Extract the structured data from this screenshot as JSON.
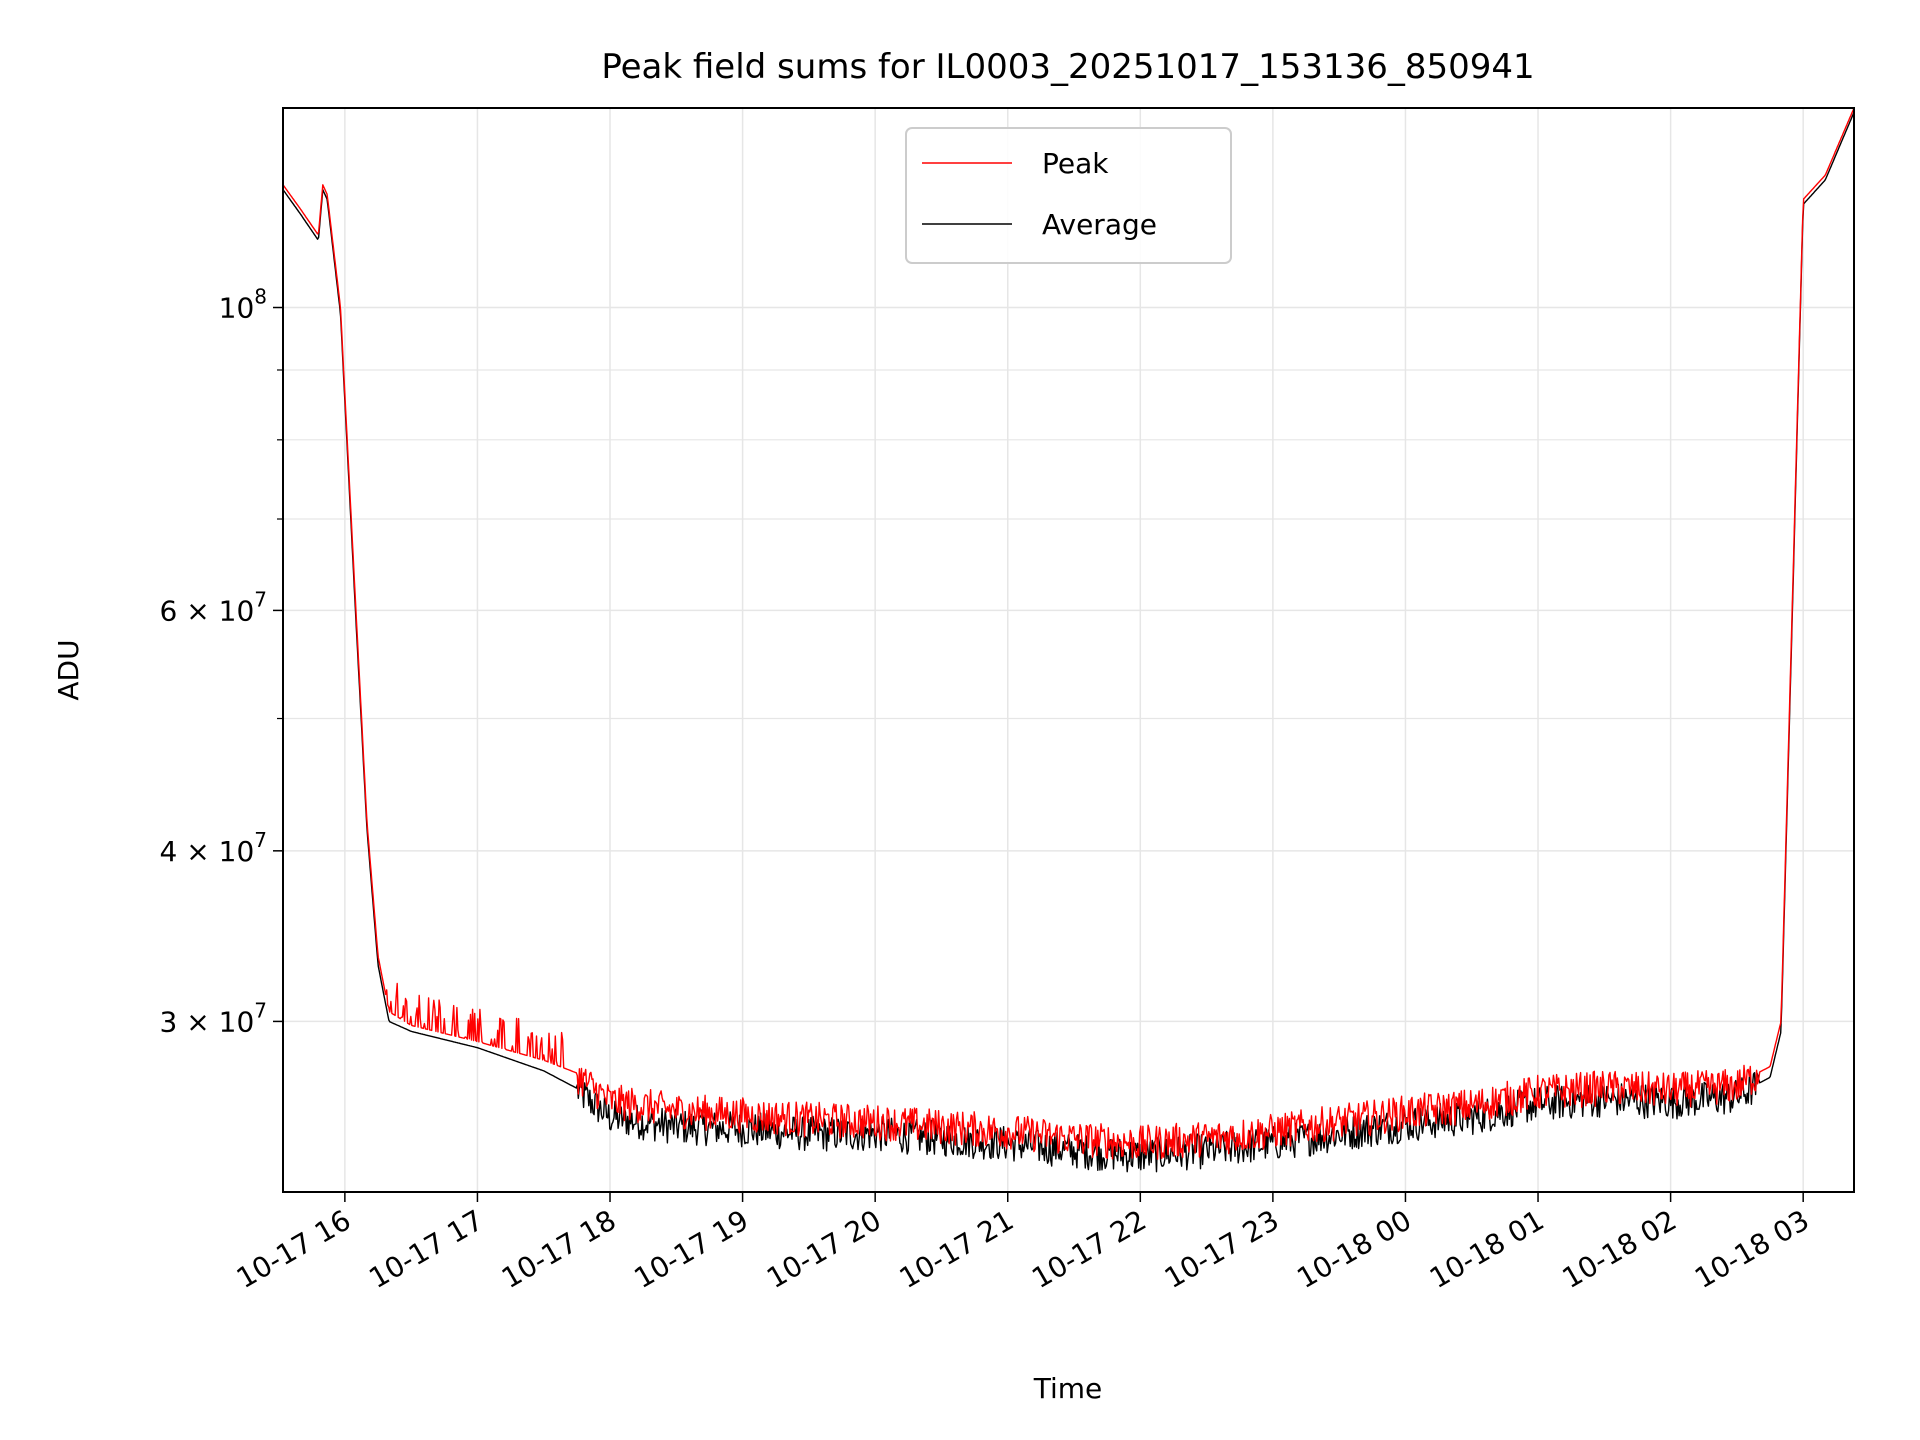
{
  "chart_data": {
    "type": "line",
    "title": "Peak field sums for IL0003_20251017_153136_850941",
    "xlabel": "Time",
    "ylabel": "ADU",
    "yscale": "log",
    "grid": true,
    "legend_placement": "upper center",
    "xlim": [
      "2025-10-17 15:32",
      "2025-10-18 03:23"
    ],
    "ylim": [
      22500000,
      140000000
    ],
    "x_ticks": [
      "10-17 16",
      "10-17 17",
      "10-17 18",
      "10-17 19",
      "10-17 20",
      "10-17 21",
      "10-17 22",
      "10-17 23",
      "10-18 00",
      "10-18 01",
      "10-18 02",
      "10-18 03"
    ],
    "y_ticks": [
      {
        "value": 100000000,
        "base": "10",
        "exp": "8"
      },
      {
        "value": 60000000,
        "base": "6 × 10",
        "exp": "7"
      },
      {
        "value": 40000000,
        "base": "4 × 10",
        "exp": "7"
      },
      {
        "value": 30000000,
        "base": "3 × 10",
        "exp": "7"
      }
    ],
    "series": [
      {
        "name": "Peak",
        "color": "#ff0000",
        "x": [
          "2025-10-17 15:32",
          "2025-10-17 15:40",
          "2025-10-17 15:48",
          "2025-10-17 15:50",
          "2025-10-17 15:52",
          "2025-10-17 15:58",
          "2025-10-17 16:05",
          "2025-10-17 16:10",
          "2025-10-17 16:15",
          "2025-10-17 16:20",
          "2025-10-17 16:30",
          "2025-10-17 17:00",
          "2025-10-17 17:30",
          "2025-10-17 17:45",
          "2025-10-17 18:00",
          "2025-10-17 18:30",
          "2025-10-17 19:00",
          "2025-10-17 19:30",
          "2025-10-17 20:00",
          "2025-10-17 20:30",
          "2025-10-17 21:00",
          "2025-10-17 21:30",
          "2025-10-17 22:00",
          "2025-10-17 22:30",
          "2025-10-17 23:00",
          "2025-10-17 23:30",
          "2025-10-18 00:00",
          "2025-10-18 00:30",
          "2025-10-18 01:00",
          "2025-10-18 01:30",
          "2025-10-18 02:00",
          "2025-10-18 02:30",
          "2025-10-18 02:45",
          "2025-10-18 02:50",
          "2025-10-18 02:55",
          "2025-10-18 03:00",
          "2025-10-18 03:10",
          "2025-10-18 03:23"
        ],
        "y": [
          123000000,
          118000000,
          113000000,
          123000000,
          121000000,
          100000000,
          60000000,
          42000000,
          33500000,
          30500000,
          29800000,
          29000000,
          28100000,
          27500000,
          26300000,
          25900000,
          25700000,
          25500000,
          25400000,
          25200000,
          25000000,
          24700000,
          24500000,
          24700000,
          25000000,
          25400000,
          25800000,
          26100000,
          26700000,
          26900000,
          26800000,
          27000000,
          27800000,
          30000000,
          60000000,
          120000000,
          125000000,
          140000000
        ]
      },
      {
        "name": "Average",
        "color": "#000000",
        "x": [
          "2025-10-17 15:32",
          "2025-10-17 15:40",
          "2025-10-17 15:48",
          "2025-10-17 15:50",
          "2025-10-17 15:52",
          "2025-10-17 15:58",
          "2025-10-17 16:05",
          "2025-10-17 16:10",
          "2025-10-17 16:15",
          "2025-10-17 16:20",
          "2025-10-17 16:30",
          "2025-10-17 17:00",
          "2025-10-17 17:30",
          "2025-10-17 17:45",
          "2025-10-17 18:00",
          "2025-10-17 18:30",
          "2025-10-17 19:00",
          "2025-10-17 19:30",
          "2025-10-17 20:00",
          "2025-10-17 20:30",
          "2025-10-17 21:00",
          "2025-10-17 21:30",
          "2025-10-17 22:00",
          "2025-10-17 22:30",
          "2025-10-17 23:00",
          "2025-10-17 23:30",
          "2025-10-18 00:00",
          "2025-10-18 00:30",
          "2025-10-18 01:00",
          "2025-10-18 01:30",
          "2025-10-18 02:00",
          "2025-10-18 02:30",
          "2025-10-18 02:45",
          "2025-10-18 02:50",
          "2025-10-18 02:55",
          "2025-10-18 03:00",
          "2025-10-18 03:10",
          "2025-10-18 03:23"
        ],
        "y": [
          122000000,
          117000000,
          112000000,
          122000000,
          120000000,
          99000000,
          59000000,
          41500000,
          33000000,
          30000000,
          29500000,
          28700000,
          27600000,
          26800000,
          25600000,
          25200000,
          25100000,
          24900000,
          24900000,
          24700000,
          24500000,
          24200000,
          24000000,
          24200000,
          24500000,
          24900000,
          25300000,
          25600000,
          26200000,
          26400000,
          26300000,
          26500000,
          27300000,
          29500000,
          59000000,
          119000000,
          124000000,
          139000000
        ]
      }
    ]
  }
}
